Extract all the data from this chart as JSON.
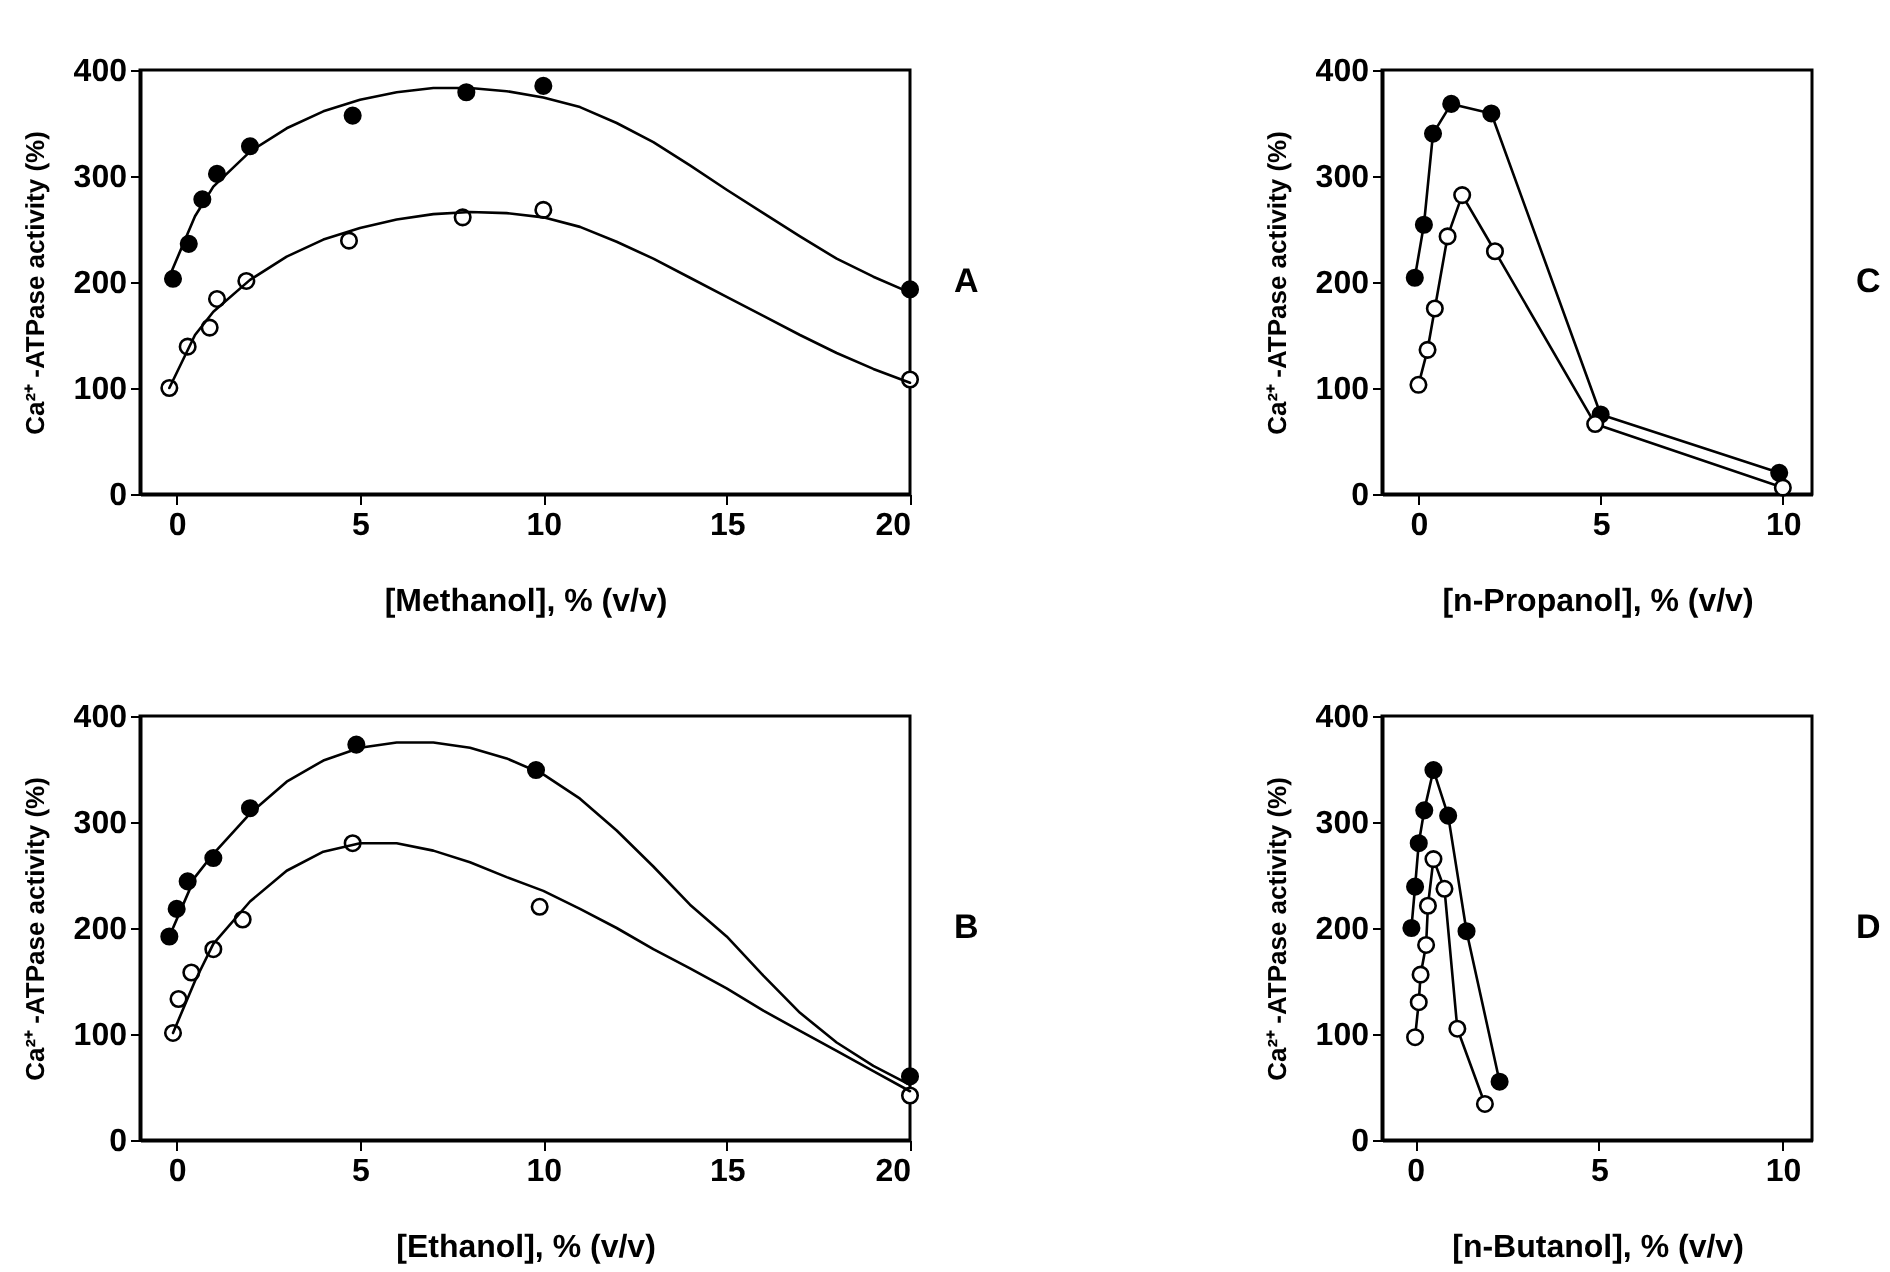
{
  "chart_data": [
    {
      "type": "scatter",
      "xlabel": "[Methanol], % (v/v)",
      "ylabel": "Ca²⁺ -ATPase activity (%)",
      "annotations": [
        "A"
      ],
      "xlim": [
        -1,
        20
      ],
      "ylim": [
        0,
        400
      ],
      "xticks": [
        0,
        5,
        10,
        15,
        20
      ],
      "yticks": [
        0,
        100,
        200,
        300,
        400
      ],
      "marker": "circle",
      "series": [
        {
          "color": "#000000",
          "x": [
            -0.1,
            0.33,
            0.7,
            1.1,
            2.0,
            4.8,
            7.9,
            10.0,
            20.0
          ],
          "values": [
            203,
            236,
            278,
            302,
            328,
            357,
            379,
            385,
            193
          ]
        },
        {
          "color": "#ffffff",
          "x": [
            -0.2,
            0.3,
            0.9,
            1.1,
            1.9,
            4.7,
            7.8,
            10.0,
            20.0
          ],
          "values": [
            100,
            139,
            157,
            184,
            201,
            239,
            261,
            268,
            108
          ]
        },
        {
          "type": "line",
          "marker": "none",
          "color": "#000000",
          "x": [
            -0.2,
            0.5,
            1,
            2,
            3,
            4,
            5,
            6,
            7,
            8,
            9,
            10,
            11,
            12,
            13,
            14,
            15,
            16,
            17,
            18,
            19,
            20
          ],
          "values": [
            205,
            262,
            290,
            323,
            345,
            361,
            372,
            379,
            383,
            383,
            380,
            374,
            365,
            350,
            332,
            310,
            287,
            265,
            243,
            222,
            205,
            190
          ]
        },
        {
          "type": "line",
          "marker": "none",
          "color": "#000000",
          "x": [
            -0.2,
            0.5,
            1,
            2,
            3,
            4,
            5,
            6,
            7,
            8,
            9,
            10,
            11,
            12,
            13,
            14,
            15,
            16,
            17,
            18,
            19,
            20
          ],
          "values": [
            100,
            150,
            172,
            202,
            224,
            240,
            251,
            259,
            264,
            266,
            265,
            261,
            252,
            238,
            222,
            204,
            186,
            168,
            150,
            133,
            118,
            105
          ]
        }
      ]
    },
    {
      "type": "line",
      "xlabel": "[n-Propanol], % (v/v)",
      "ylabel": "Ca²⁺ -ATPase activity (%)",
      "annotations": [
        "C"
      ],
      "xlim": [
        -1,
        10.8
      ],
      "ylim": [
        0,
        400
      ],
      "xticks": [
        0,
        5,
        10
      ],
      "yticks": [
        0,
        100,
        200,
        300,
        400
      ],
      "marker": "circle",
      "series": [
        {
          "color": "#000000",
          "x": [
            -0.1,
            0.15,
            0.4,
            0.9,
            2.0,
            5.0,
            9.9
          ],
          "values": [
            204,
            254,
            340,
            368,
            359,
            75,
            20
          ]
        },
        {
          "color": "#ffffff",
          "x": [
            0.0,
            0.25,
            0.45,
            0.8,
            1.2,
            2.1,
            4.85,
            10.0
          ],
          "values": [
            103,
            136,
            175,
            243,
            282,
            229,
            66,
            6
          ]
        }
      ]
    },
    {
      "type": "scatter",
      "xlabel": "[Ethanol], % (v/v)",
      "ylabel": "Ca²⁺ -ATPase activity (%)",
      "annotations": [
        "B"
      ],
      "xlim": [
        -1,
        20
      ],
      "ylim": [
        0,
        400
      ],
      "xticks": [
        0,
        5,
        10,
        15,
        20
      ],
      "yticks": [
        0,
        100,
        200,
        300,
        400
      ],
      "marker": "circle",
      "series": [
        {
          "color": "#000000",
          "x": [
            -0.2,
            0.0,
            0.3,
            1.0,
            2.0,
            4.9,
            9.8,
            20.0
          ],
          "values": [
            192,
            218,
            244,
            266,
            313,
            373,
            349,
            60
          ]
        },
        {
          "color": "#ffffff",
          "x": [
            -0.1,
            0.05,
            0.4,
            1.0,
            1.8,
            4.8,
            9.9,
            20.0
          ],
          "values": [
            101,
            133,
            158,
            180,
            208,
            280,
            220,
            42
          ]
        },
        {
          "type": "line",
          "marker": "none",
          "color": "#000000",
          "x": [
            -0.2,
            0.5,
            1,
            2,
            3,
            4,
            5,
            6,
            7,
            8,
            9,
            10,
            11,
            12,
            13,
            14,
            15,
            16,
            17,
            18,
            19,
            20
          ],
          "values": [
            192,
            248,
            270,
            308,
            338,
            358,
            370,
            375,
            375,
            370,
            360,
            345,
            322,
            292,
            258,
            222,
            192,
            155,
            120,
            92,
            70,
            52
          ]
        },
        {
          "type": "line",
          "marker": "none",
          "color": "#000000",
          "x": [
            -0.1,
            0.5,
            1,
            2,
            3,
            4,
            5,
            6,
            7,
            8,
            9,
            10,
            11,
            12,
            13,
            14,
            15,
            16,
            17,
            18,
            19,
            20
          ],
          "values": [
            101,
            150,
            185,
            225,
            254,
            272,
            280,
            280,
            273,
            262,
            248,
            235,
            218,
            200,
            180,
            162,
            143,
            122,
            103,
            84,
            65,
            46
          ]
        }
      ]
    },
    {
      "type": "line",
      "xlabel": "[n-Butanol], % (v/v)",
      "ylabel": "Ca²⁺ -ATPase activity (%)",
      "annotations": [
        "D"
      ],
      "xlim": [
        -0.9,
        10.8
      ],
      "ylim": [
        0,
        400
      ],
      "xticks": [
        0,
        5,
        10
      ],
      "yticks": [
        0,
        100,
        200,
        300,
        400
      ],
      "marker": "circle",
      "series": [
        {
          "color": "#000000",
          "x": [
            -0.1,
            0.0,
            0.1,
            0.25,
            0.5,
            0.9,
            1.4,
            2.3
          ],
          "values": [
            200,
            239,
            280,
            311,
            349,
            306,
            197,
            55
          ]
        },
        {
          "color": "#ffffff",
          "x": [
            0.0,
            0.1,
            0.15,
            0.3,
            0.35,
            0.5,
            0.8,
            1.15,
            1.9
          ],
          "values": [
            97,
            130,
            156,
            184,
            221,
            265,
            237,
            105,
            34
          ]
        }
      ]
    }
  ]
}
